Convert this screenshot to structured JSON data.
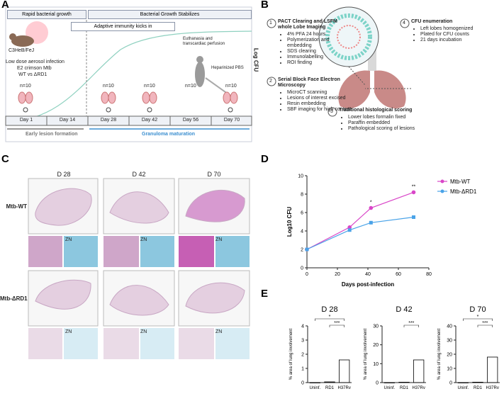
{
  "panel_labels": [
    "A",
    "B",
    "C",
    "D",
    "E"
  ],
  "panel_a": {
    "phase_early": "Rapid bacterial growth",
    "phase_late": "Bacterial Growth Stabilizes",
    "immunity": "Adaptive immunity kicks in",
    "mouse_strain": "C3HeB/FeJ",
    "infection": [
      "Low dose aerosol infection",
      "E2 crimson Mtb",
      "WT vs ΔRD1"
    ],
    "euthanasia": "Euthanasia and transcardiac perfusion",
    "perfusion": "Heparinized PBS",
    "y_label": "Log CFU",
    "group_sizes": [
      "n=10",
      "n=10",
      "n=10",
      "n=10",
      "n=10"
    ],
    "days": [
      "Day 1",
      "Day 14",
      "Day 28",
      "Day 42",
      "Day 56",
      "Day 70"
    ],
    "stage_early": "Early lesion formation",
    "stage_late": "Granuloma maturation"
  },
  "panel_b": {
    "steps": [
      {
        "number": "1",
        "title": "PACT Clearing and LSFM whole Lobe Imaging",
        "items": [
          "4% PFA 24 hours",
          "Polymerization and embedding",
          "SDS clearing",
          "Immunolabelling",
          "ROI finding"
        ]
      },
      {
        "number": "2",
        "title": "Serial Block Face Electron Microscopy",
        "items": [
          "MicroCT scanning",
          "Lesions of interest excised",
          "Resin embedding",
          "SBF imaging for high content"
        ]
      },
      {
        "number": "3",
        "title": "Traditional histological scoring",
        "items": [
          "Lower lobes formalin fixed",
          "Paraffin embedded",
          "Pathological scoring of lesions"
        ]
      },
      {
        "number": "4",
        "title": "CFU enumeration",
        "items": [
          "Left lobes homogenized",
          "Plated for CFU counts",
          "21 days incubation"
        ]
      }
    ]
  },
  "panel_c": {
    "columns": [
      "D 28",
      "D 42",
      "D 70"
    ],
    "rows": [
      "Mtb-WT",
      "Mtb-ΔRD1"
    ],
    "stain_label": "ZN"
  },
  "chart_data": [
    {
      "type": "line",
      "x_label": "Days post-infection",
      "y_label": "Log10 CFU",
      "x": [
        0,
        28,
        42,
        70
      ],
      "series": [
        {
          "name": "Mtb-WT",
          "color": "#d946c8",
          "values": [
            2,
            4.4,
            6.5,
            8.2
          ]
        },
        {
          "name": "Mtb-ΔRD1",
          "color": "#4aa3e8",
          "values": [
            2,
            4.1,
            4.9,
            5.5
          ]
        }
      ],
      "annotations": [
        {
          "text": "*",
          "x": 42
        },
        {
          "text": "**",
          "x": 70
        }
      ],
      "xlim": [
        0,
        80
      ],
      "xticks": [
        0,
        20,
        40,
        60,
        80
      ],
      "ylim": [
        0,
        10
      ],
      "yticks": [
        0,
        2,
        4,
        6,
        8,
        10
      ]
    },
    {
      "type": "bar",
      "title": "D 28",
      "y_label": "% area of lung involvement",
      "categories": [
        "Uninf.",
        "RD1",
        "H37Rv"
      ],
      "values": [
        0,
        0.05,
        1.6
      ],
      "color": "#000000",
      "annotations": [
        "*",
        "***"
      ],
      "ylim": [
        0,
        4
      ],
      "yticks": [
        0,
        1,
        2,
        3,
        4
      ]
    },
    {
      "type": "bar",
      "title": "D 42",
      "y_label": "% area of lung involvement",
      "categories": [
        "Uninf.",
        "RD1",
        "H37Rv"
      ],
      "values": [
        0,
        0.2,
        12
      ],
      "color": "#000000",
      "annotations": [
        "***"
      ],
      "ylim": [
        0,
        30
      ],
      "yticks": [
        0,
        10,
        20,
        30
      ]
    },
    {
      "type": "bar",
      "title": "D 70",
      "y_label": "% area of lung involvement",
      "categories": [
        "Uninf.",
        "RD1",
        "H37Rv"
      ],
      "values": [
        0,
        0.3,
        18
      ],
      "color": "#000000",
      "annotations": [
        "*",
        "***"
      ],
      "ylim": [
        0,
        40
      ],
      "yticks": [
        0,
        10,
        20,
        30,
        40
      ]
    }
  ]
}
